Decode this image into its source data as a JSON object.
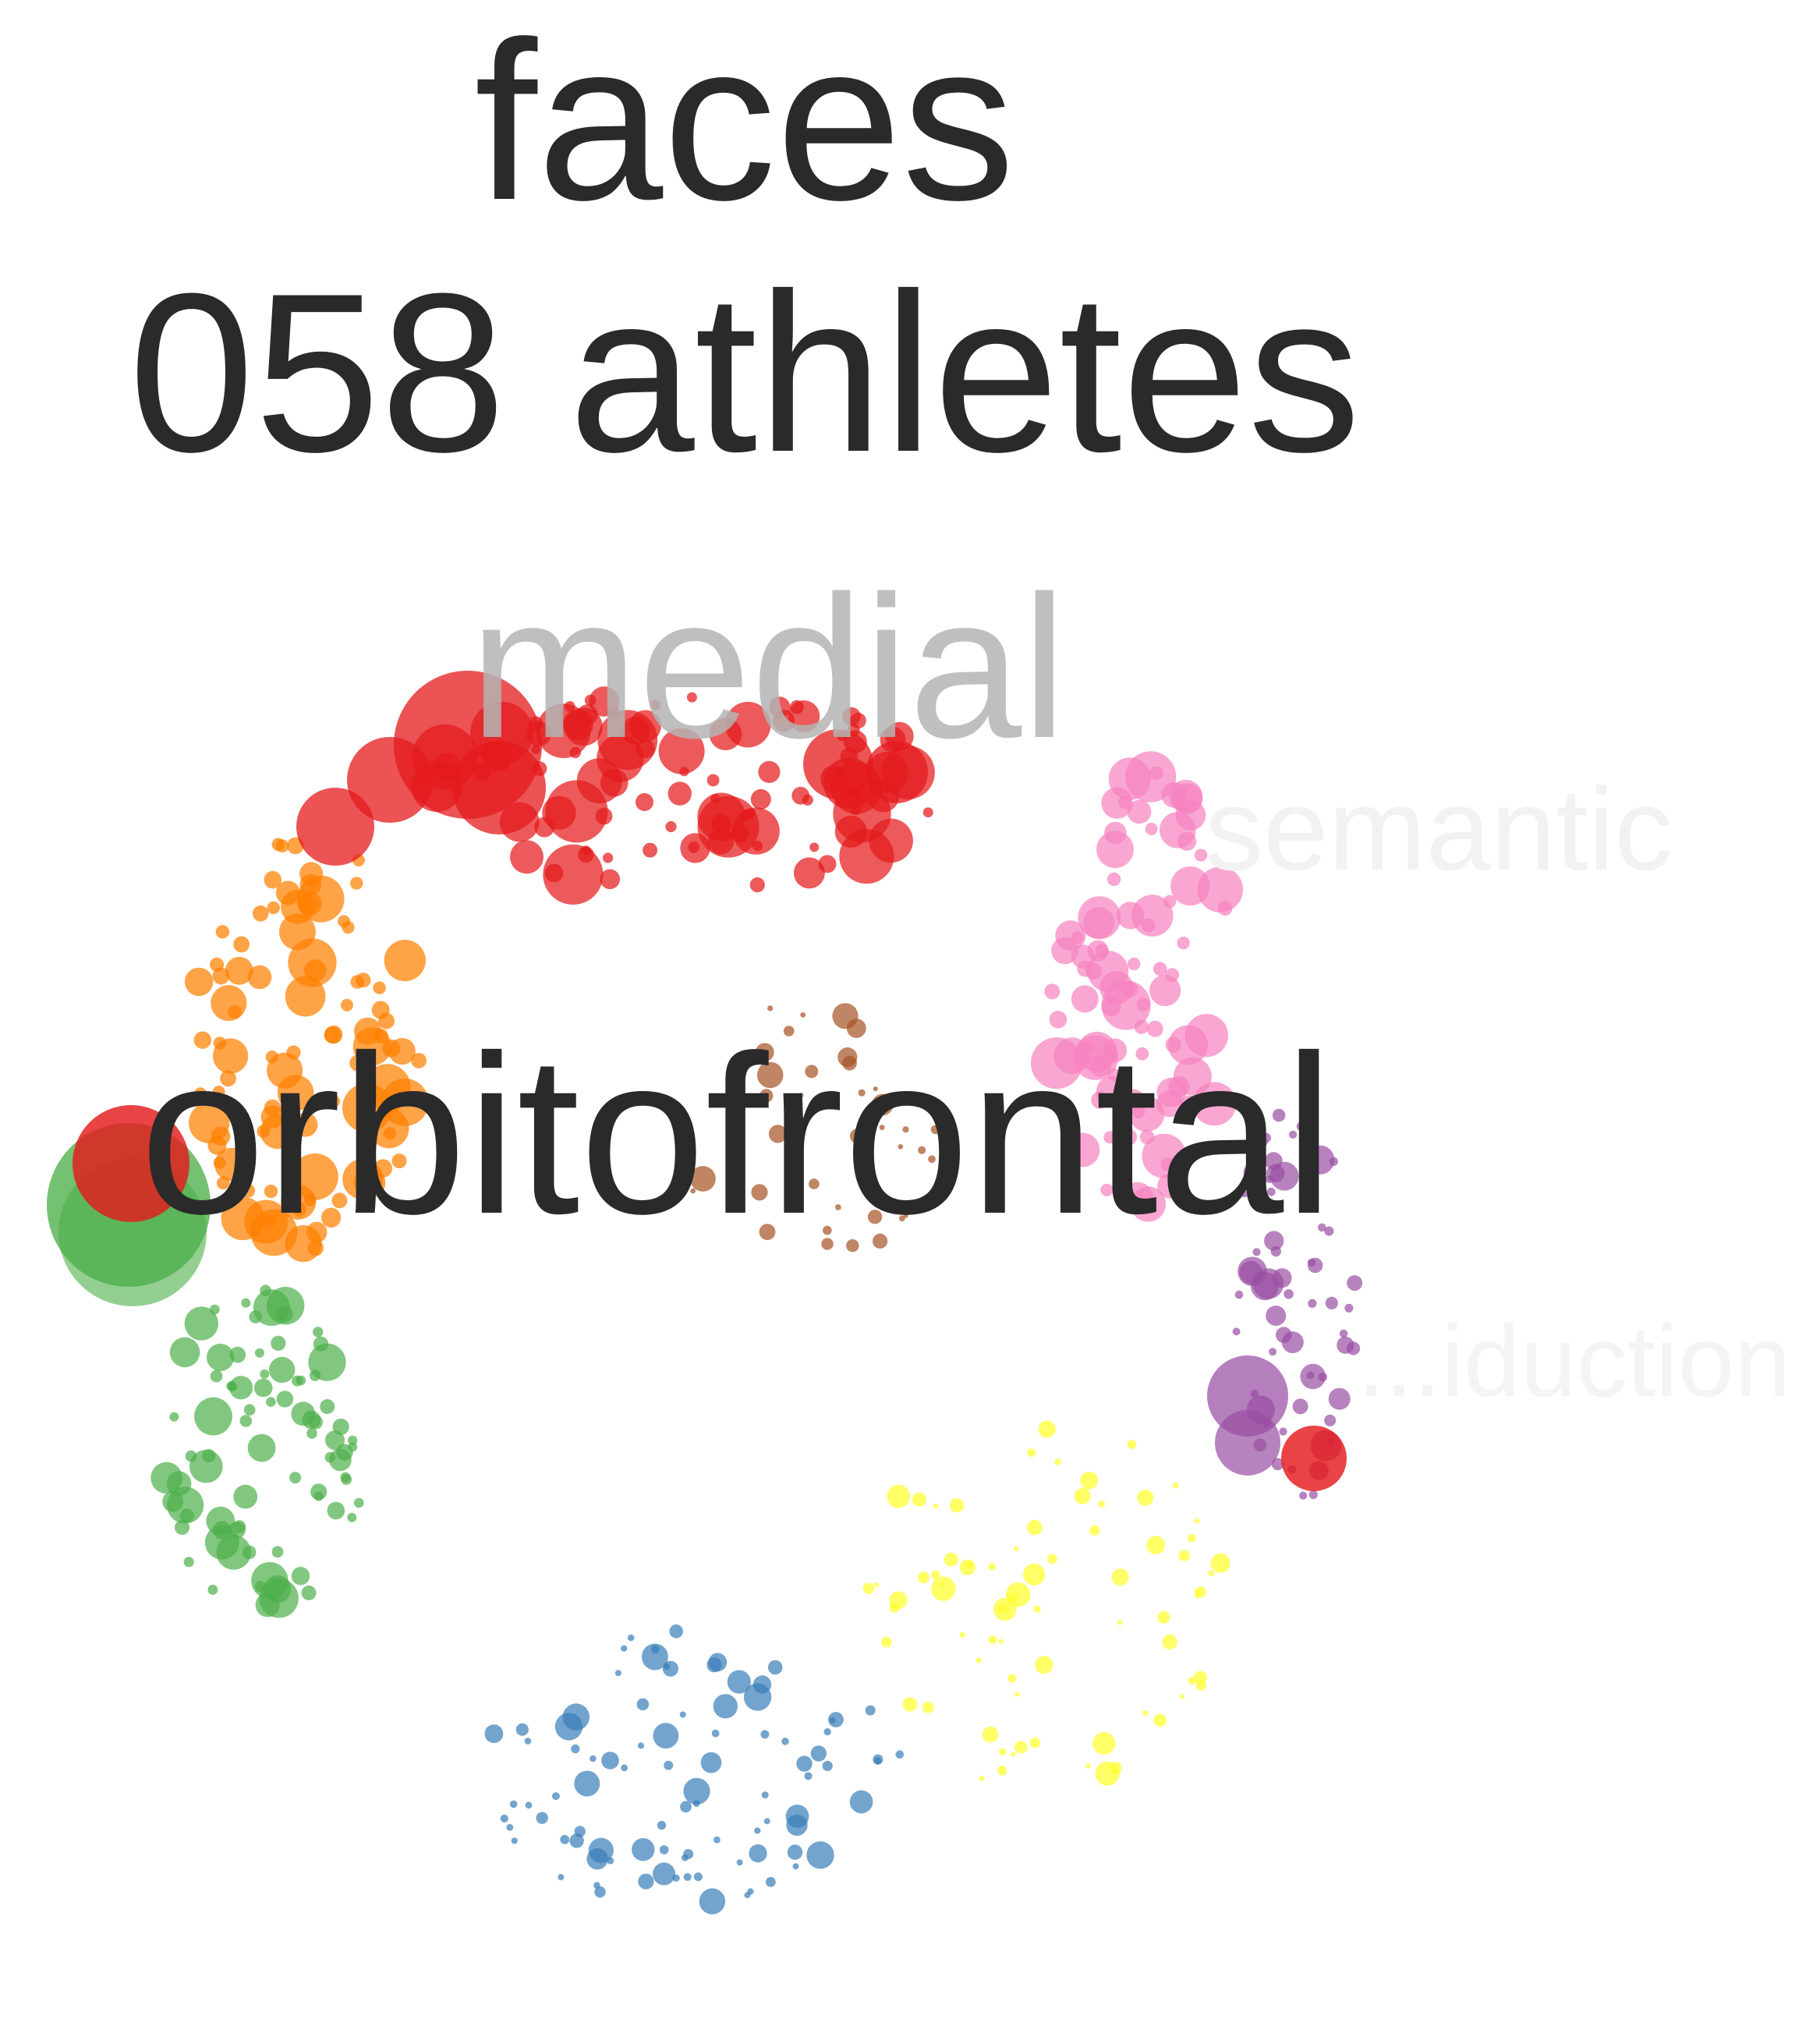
{
  "title_line1": "faces",
  "title_line2": "058 athletes",
  "label_main": "orbitofrontal",
  "label_medial": "medial",
  "label_semantic": "semantic",
  "label_right_faint": "...iduction",
  "clusters": [
    {
      "name": "red",
      "color": "#e41a1c"
    },
    {
      "name": "orange",
      "color": "#ff7f00"
    },
    {
      "name": "green",
      "color": "#4daf4a"
    },
    {
      "name": "blue",
      "color": "#377eb8"
    },
    {
      "name": "yellow",
      "color": "#ffff33"
    },
    {
      "name": "pink",
      "color": "#f781bf"
    },
    {
      "name": "purple",
      "color": "#984ea3"
    },
    {
      "name": "brown",
      "color": "#a65628"
    }
  ],
  "highlight_nodes": [
    {
      "cluster": "green",
      "radius": "largest"
    },
    {
      "cluster": "red",
      "radius": "large"
    },
    {
      "cluster": "purple",
      "radius": "large"
    }
  ]
}
